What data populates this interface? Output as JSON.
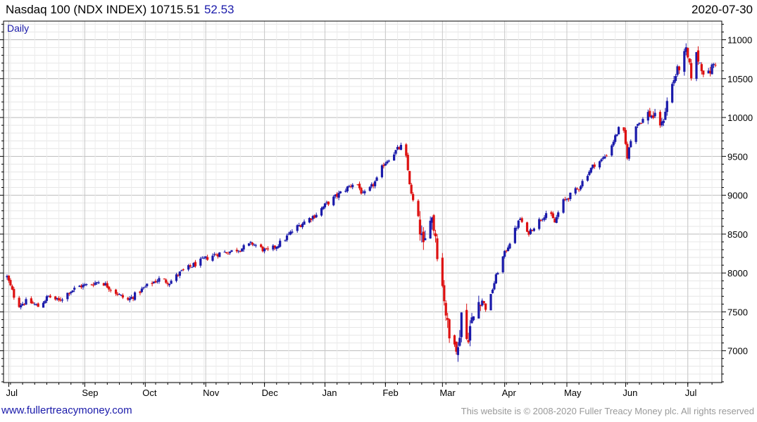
{
  "header": {
    "title": "Nasdaq 100 (NDX INDEX) 10715.51",
    "change": "52.53",
    "date": "2020-07-30"
  },
  "footer": {
    "url": "www.fullertreacymoney.com",
    "copyright": "This website is © 2008-2020 Fuller Treacy Money plc. All rights reserved"
  },
  "colors": {
    "up": "#1a1aaa",
    "down": "#dd1111",
    "grid": "#cccccc",
    "axis": "#000000"
  },
  "chart_data": {
    "type": "candlestick",
    "period_label": "Daily",
    "yticks": [
      7000,
      7500,
      8000,
      8500,
      9000,
      9500,
      10000,
      10500,
      11000
    ],
    "ylim": [
      6590,
      11240
    ],
    "months": [
      {
        "label": "Jul",
        "day": 1
      },
      {
        "label": "Sep",
        "day": 45
      },
      {
        "label": "Oct",
        "day": 80
      },
      {
        "label": "Nov",
        "day": 115
      },
      {
        "label": "Dec",
        "day": 149
      },
      {
        "label": "Jan",
        "day": 184
      },
      {
        "label": "Feb",
        "day": 219
      },
      {
        "label": "Mar",
        "day": 252
      },
      {
        "label": "Apr",
        "day": 288
      },
      {
        "label": "May",
        "day": 324
      },
      {
        "label": "Jun",
        "day": 358
      },
      {
        "label": "Jul",
        "day": 394
      }
    ],
    "anchors": [
      [
        0,
        7950
      ],
      [
        6,
        7580
      ],
      [
        12,
        7640
      ],
      [
        18,
        7570
      ],
      [
        24,
        7700
      ],
      [
        30,
        7640
      ],
      [
        36,
        7760
      ],
      [
        42,
        7830
      ],
      [
        48,
        7850
      ],
      [
        54,
        7900
      ],
      [
        60,
        7800
      ],
      [
        66,
        7700
      ],
      [
        70,
        7650
      ],
      [
        76,
        7750
      ],
      [
        82,
        7850
      ],
      [
        88,
        7920
      ],
      [
        94,
        7880
      ],
      [
        100,
        8000
      ],
      [
        106,
        8080
      ],
      [
        112,
        8150
      ],
      [
        118,
        8220
      ],
      [
        124,
        8260
      ],
      [
        130,
        8280
      ],
      [
        136,
        8320
      ],
      [
        142,
        8380
      ],
      [
        146,
        8330
      ],
      [
        150,
        8280
      ],
      [
        154,
        8320
      ],
      [
        160,
        8420
      ],
      [
        166,
        8560
      ],
      [
        172,
        8660
      ],
      [
        178,
        8740
      ],
      [
        184,
        8870
      ],
      [
        190,
        8980
      ],
      [
        196,
        9080
      ],
      [
        202,
        9180
      ],
      [
        206,
        9000
      ],
      [
        210,
        9080
      ],
      [
        214,
        9200
      ],
      [
        218,
        9400
      ],
      [
        222,
        9500
      ],
      [
        226,
        9590
      ],
      [
        229,
        9640
      ],
      [
        231,
        9480
      ],
      [
        234,
        9000
      ],
      [
        238,
        8700
      ],
      [
        241,
        8300
      ],
      [
        243,
        8500
      ],
      [
        245,
        8800
      ],
      [
        248,
        8500
      ],
      [
        250,
        8100
      ],
      [
        253,
        7700
      ],
      [
        255,
        7300
      ],
      [
        257,
        7000
      ],
      [
        259,
        7200
      ],
      [
        261,
        7000
      ],
      [
        263,
        7500
      ],
      [
        266,
        7150
      ],
      [
        268,
        7300
      ],
      [
        271,
        7500
      ],
      [
        274,
        7700
      ],
      [
        278,
        7500
      ],
      [
        281,
        7800
      ],
      [
        285,
        8100
      ],
      [
        289,
        8300
      ],
      [
        293,
        8500
      ],
      [
        297,
        8700
      ],
      [
        301,
        8500
      ],
      [
        305,
        8600
      ],
      [
        309,
        8700
      ],
      [
        313,
        8800
      ],
      [
        317,
        8650
      ],
      [
        321,
        8900
      ],
      [
        326,
        9000
      ],
      [
        331,
        9100
      ],
      [
        335,
        9250
      ],
      [
        340,
        9400
      ],
      [
        344,
        9450
      ],
      [
        348,
        9550
      ],
      [
        352,
        9750
      ],
      [
        356,
        9950
      ],
      [
        359,
        9500
      ],
      [
        363,
        9900
      ],
      [
        367,
        9950
      ],
      [
        371,
        10050
      ],
      [
        375,
        10000
      ],
      [
        379,
        9900
      ],
      [
        383,
        10300
      ],
      [
        387,
        10550
      ],
      [
        390,
        10700
      ],
      [
        393,
        10850
      ],
      [
        396,
        10550
      ],
      [
        399,
        10800
      ],
      [
        402,
        10650
      ],
      [
        405,
        10500
      ],
      [
        408,
        10650
      ],
      [
        410,
        10715
      ]
    ]
  }
}
